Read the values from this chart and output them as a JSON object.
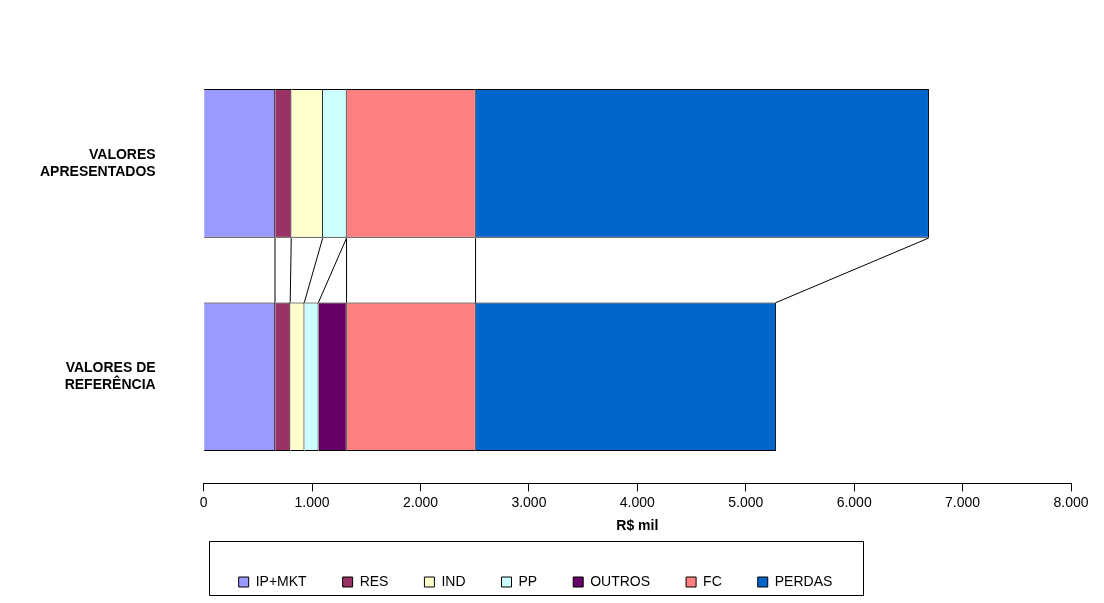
{
  "chart_data": {
    "type": "bar",
    "orientation": "horizontal",
    "stacked": true,
    "xlabel": "R$ mil",
    "categories": [
      "VALORES APRESENTADOS",
      "VALORES DE REFERÊNCIA"
    ],
    "series": [
      {
        "name": "IP+MKT",
        "color": "#9999ff",
        "values": [
          660,
          660
        ]
      },
      {
        "name": "RES",
        "color": "#993366",
        "values": [
          150,
          140
        ]
      },
      {
        "name": "IND",
        "color": "#ffffcc",
        "values": [
          290,
          130
        ]
      },
      {
        "name": "PP",
        "color": "#ccffff",
        "values": [
          220,
          130
        ]
      },
      {
        "name": "OUTROS",
        "color": "#660066",
        "values": [
          0,
          260
        ]
      },
      {
        "name": "FC",
        "color": "#ff8080",
        "values": [
          1190,
          1190
        ]
      },
      {
        "name": "PERDAS",
        "color": "#0066cc",
        "values": [
          4180,
          2770
        ]
      }
    ],
    "xlim": [
      0,
      8000
    ],
    "xticks": [
      0,
      {
        "value": 1000,
        "label": "1.000"
      },
      {
        "value": 2000,
        "label": "2.000"
      },
      {
        "value": 3000,
        "label": "3.000"
      },
      {
        "value": 4000,
        "label": "4.000"
      },
      {
        "value": 5000,
        "label": "5.000"
      },
      {
        "value": 6000,
        "label": "6.000"
      },
      {
        "value": 7000,
        "label": "7.000"
      },
      {
        "value": 8000,
        "label": "8.000"
      }
    ],
    "grid": false,
    "legend": "bottom"
  }
}
